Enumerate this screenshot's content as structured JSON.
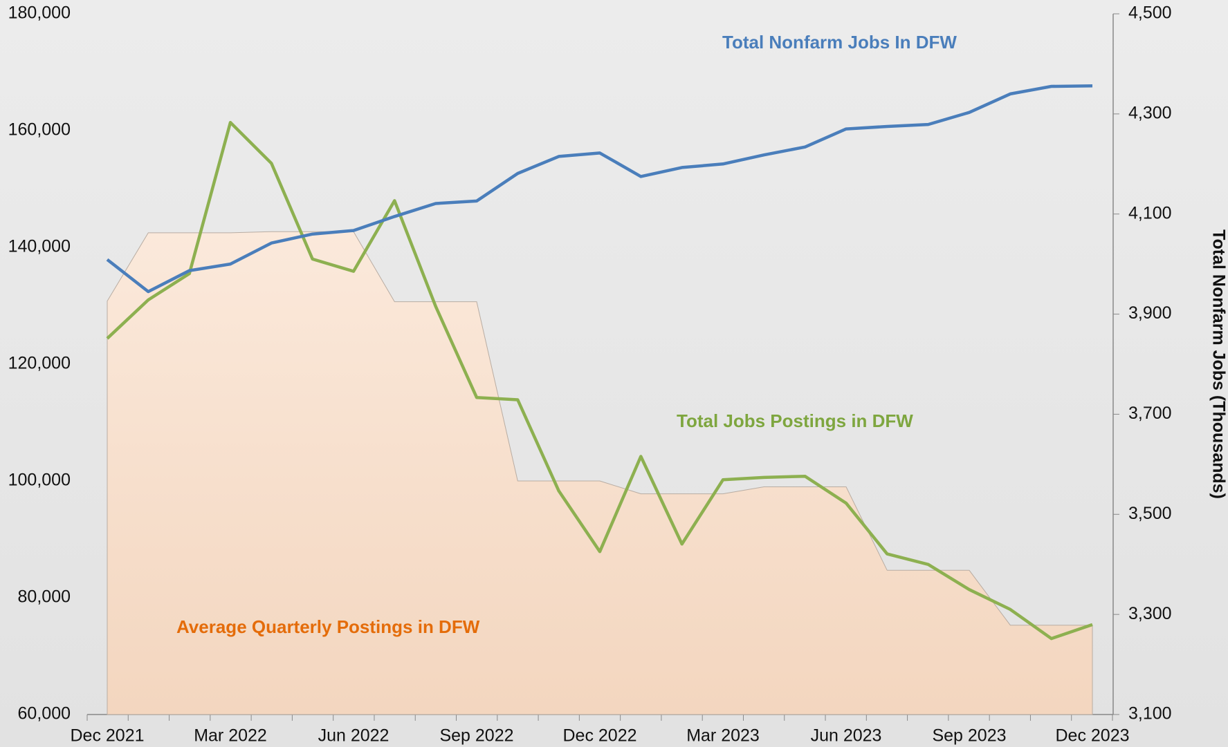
{
  "chart_data": {
    "type": "line",
    "categories": [
      "Dec 2021",
      null,
      null,
      "Mar 2022",
      null,
      null,
      "Jun 2022",
      null,
      null,
      "Sep 2022",
      null,
      null,
      "Dec 2022",
      null,
      null,
      "Mar 2023",
      null,
      null,
      "Jun 2023",
      null,
      null,
      "Sep 2023",
      null,
      null,
      "Dec 2023"
    ],
    "series": [
      {
        "name": "Average Quarterly Postings in DFW",
        "type": "area",
        "color": "#f6dcc6",
        "label_color": "#e46c0a",
        "values": [
          130800,
          142500,
          142500,
          142500,
          142700,
          142700,
          142700,
          130700,
          130700,
          130700,
          100000,
          100000,
          100000,
          97800,
          97800,
          97800,
          99000,
          99000,
          99000,
          84700,
          84700,
          84700,
          75300,
          75300,
          75300
        ]
      },
      {
        "name": "Total Jobs Postings in DFW",
        "type": "line",
        "color": "#8db050",
        "label_color": "#7ea63f",
        "values": [
          124400,
          131000,
          135500,
          161400,
          154400,
          138000,
          135900,
          148000,
          129900,
          114300,
          113900,
          98300,
          87900,
          104200,
          89200,
          100200,
          100600,
          100800,
          96200,
          87500,
          85700,
          81400,
          78000,
          73000,
          75400
        ]
      },
      {
        "name": "Total Nonfarm Jobs In DFW",
        "type": "line",
        "axis": "y2",
        "color": "#4a7ebb",
        "label_color": "#4a7ebb",
        "values": [
          4009,
          3945,
          3987,
          4000,
          4042,
          4060,
          4067,
          4095,
          4121,
          4126,
          4181,
          4215,
          4222,
          4175,
          4193,
          4200,
          4218,
          4234,
          4270,
          4275,
          4279,
          4303,
          4340,
          4355,
          4356
        ]
      }
    ],
    "ylim": [
      60000,
      180000
    ],
    "yticks": [
      {
        "value": 60000,
        "label": "60,000"
      },
      {
        "value": 80000,
        "label": "80,000"
      },
      {
        "value": 100000,
        "label": "100,000"
      },
      {
        "value": 120000,
        "label": "120,000"
      },
      {
        "value": 140000,
        "label": "140,000"
      },
      {
        "value": 160000,
        "label": "160,000"
      },
      {
        "value": 180000,
        "label": "180,000"
      }
    ],
    "y2label": "Total Nonfarm Jobs (Thousands)",
    "y2lim": [
      3100,
      4500
    ],
    "y2ticks": [
      {
        "value": 3100,
        "label": "3,100"
      },
      {
        "value": 3300,
        "label": "3,300"
      },
      {
        "value": 3500,
        "label": "3,500"
      },
      {
        "value": 3700,
        "label": "3,700"
      },
      {
        "value": 3900,
        "label": "3,900"
      },
      {
        "value": 4100,
        "label": "4,100"
      },
      {
        "value": 4300,
        "label": "4,300"
      },
      {
        "value": 4500,
        "label": "4,500"
      }
    ]
  }
}
